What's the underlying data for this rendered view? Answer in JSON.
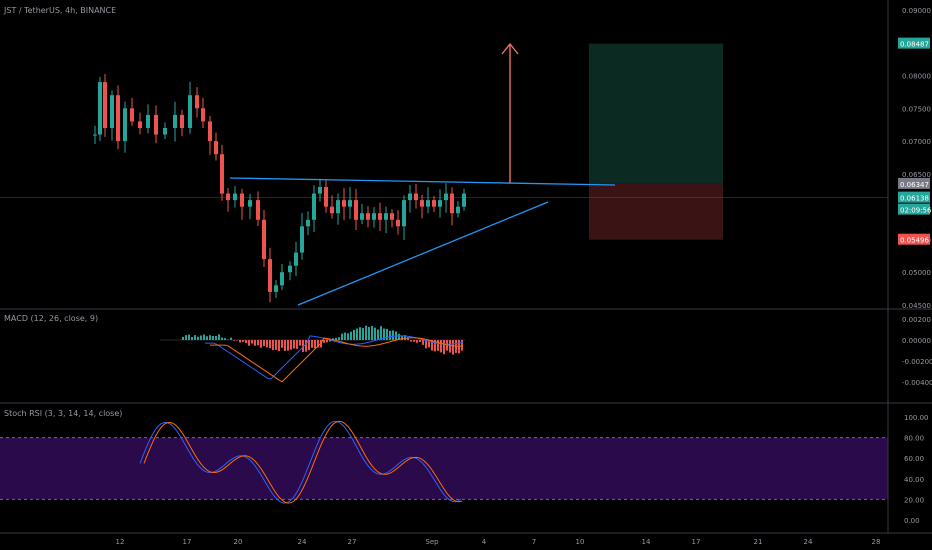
{
  "header": {
    "symbol_line": "JST / TetherUS, 4h, BINANCE"
  },
  "panes": {
    "macd": {
      "legend": "MACD (12, 26, close, 9)"
    },
    "stoch": {
      "legend": "Stoch RSI (3, 3, 14, 14, close)"
    }
  },
  "price_axis": {
    "ticks": [
      "0.09000",
      "0.08000",
      "0.07500",
      "0.07000",
      "0.06500",
      "0.05500",
      "0.05000",
      "0.04500"
    ],
    "ticks_values": [
      0.09,
      0.08,
      0.075,
      0.07,
      0.065,
      0.055,
      0.05,
      0.045
    ],
    "labels": {
      "target": "0.08487",
      "entry": "0.06347",
      "current": "0.06138",
      "countdown": "02:09:56",
      "stop": "0.05496"
    }
  },
  "macd_axis": {
    "ticks": [
      "0.00200",
      "0.00000",
      "-0.00200",
      "-0.00400"
    ],
    "ticks_values": [
      0.002,
      0,
      -0.002,
      -0.004
    ]
  },
  "stoch_axis": {
    "ticks": [
      "100.00",
      "80.00",
      "60.00",
      "40.00",
      "20.00",
      "0.00"
    ],
    "ticks_values": [
      100,
      80,
      60,
      40,
      20,
      0
    ]
  },
  "time_axis": {
    "labels": [
      "12",
      "17",
      "20",
      "24",
      "27",
      "Sep",
      "4",
      "7",
      "10",
      "14",
      "17",
      "21",
      "24",
      "28"
    ]
  },
  "colors": {
    "bg": "#000000",
    "up": "#26a69a",
    "down": "#ef5350",
    "trendline": "#2196f3",
    "arrow": "#f26c6c",
    "target_zone": "#0a2a22",
    "stop_zone": "#3a1414",
    "stoch_band": "#2a0a4a",
    "k_line": "#2962ff",
    "d_line": "#ff6d00",
    "grid": "#2a2e39",
    "axis_text": "#9598a1"
  }
}
